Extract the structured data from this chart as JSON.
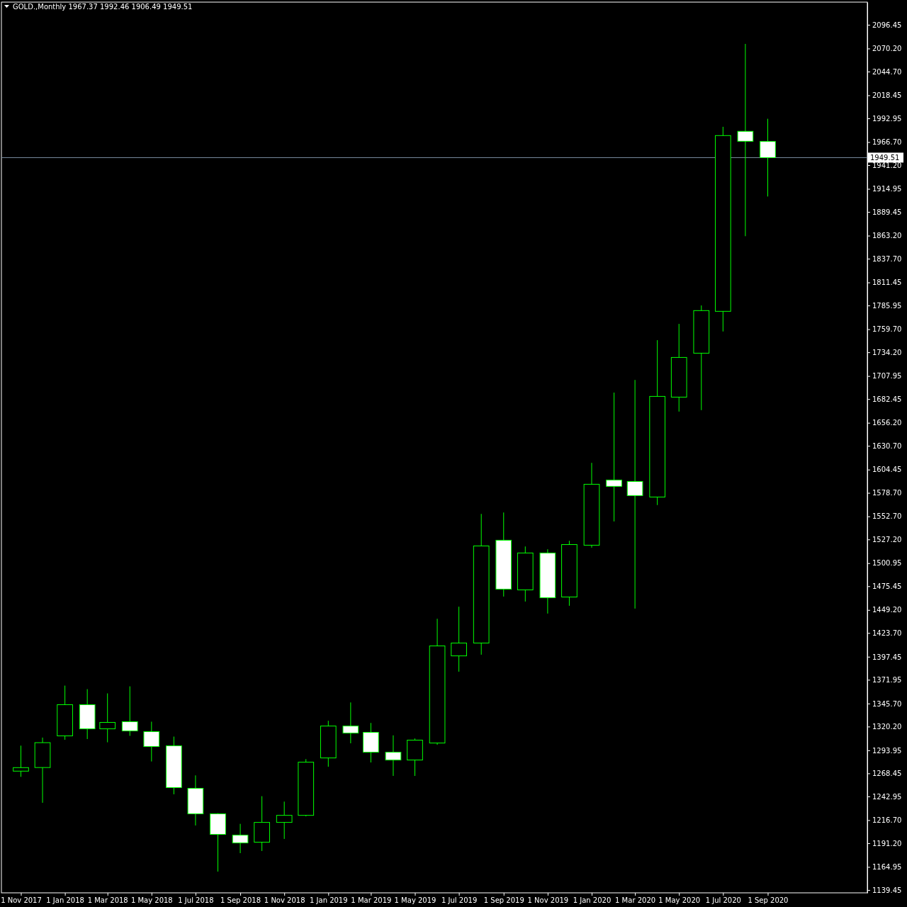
{
  "chart_data": {
    "type": "candlestick",
    "title": "GOLD.,Monthly  1967.37 1992.46 1906.49 1949.51",
    "color": "#00ff00",
    "x": [
      "2017-11",
      "2017-12",
      "2018-01",
      "2018-02",
      "2018-03",
      "2018-04",
      "2018-05",
      "2018-06",
      "2018-07",
      "2018-08",
      "2018-09",
      "2018-10",
      "2018-11",
      "2018-12",
      "2019-01",
      "2019-02",
      "2019-03",
      "2019-04",
      "2019-05",
      "2019-06",
      "2019-07",
      "2019-08",
      "2019-09",
      "2019-10",
      "2019-11",
      "2019-12",
      "2020-01",
      "2020-02",
      "2020-03",
      "2020-04",
      "2020-05",
      "2020-06",
      "2020-07",
      "2020-08",
      "2020-09"
    ],
    "xlim": [
      "2017-10-05",
      "2021-01-17"
    ],
    "xticks": [
      {
        "value": "2017-11",
        "label": "1 Nov 2017"
      },
      {
        "value": "2018-01",
        "label": "1 Jan 2018"
      },
      {
        "value": "2018-03",
        "label": "1 Mar 2018"
      },
      {
        "value": "2018-05",
        "label": "1 May 2018"
      },
      {
        "value": "2018-07",
        "label": "1 Jul 2018"
      },
      {
        "value": "2018-09",
        "label": "1 Sep 2018"
      },
      {
        "value": "2018-11",
        "label": "1 Nov 2018"
      },
      {
        "value": "2019-01",
        "label": "1 Jan 2019"
      },
      {
        "value": "2019-03",
        "label": "1 Mar 2019"
      },
      {
        "value": "2019-05",
        "label": "1 May 2019"
      },
      {
        "value": "2019-07",
        "label": "1 Jul 2019"
      },
      {
        "value": "2019-09",
        "label": "1 Sep 2019"
      },
      {
        "value": "2019-11",
        "label": "1 Nov 2019"
      },
      {
        "value": "2020-01",
        "label": "1 Jan 2020"
      },
      {
        "value": "2020-03",
        "label": "1 Mar 2020"
      },
      {
        "value": "2020-05",
        "label": "1 May 2020"
      },
      {
        "value": "2020-07",
        "label": "1 Jul 2020"
      },
      {
        "value": "2020-09",
        "label": "1 Sep 2020"
      }
    ],
    "ohlc": [
      [
        1270.9,
        1299.1,
        1264.6,
        1274.8
      ],
      [
        1274.9,
        1308.0,
        1235.9,
        1302.4
      ],
      [
        1309.9,
        1365.5,
        1305.6,
        1344.4
      ],
      [
        1344.4,
        1361.6,
        1306.4,
        1317.7
      ],
      [
        1317.7,
        1356.9,
        1302.8,
        1324.8
      ],
      [
        1325.6,
        1364.7,
        1309.9,
        1315.4
      ],
      [
        1314.6,
        1325.6,
        1281.6,
        1298.1
      ],
      [
        1298.9,
        1309.1,
        1245.3,
        1252.7
      ],
      [
        1251.9,
        1266.2,
        1210.8,
        1223.7
      ],
      [
        1223.7,
        1224.4,
        1159.8,
        1200.9
      ],
      [
        1200.1,
        1212.6,
        1180.2,
        1191.5
      ],
      [
        1192.3,
        1243.2,
        1182.6,
        1214.2
      ],
      [
        1214.2,
        1237.2,
        1195.9,
        1222.0
      ],
      [
        1222.0,
        1284.2,
        1220.9,
        1280.8
      ],
      [
        1285.5,
        1326.6,
        1275.8,
        1320.8
      ],
      [
        1320.8,
        1346.9,
        1301.7,
        1313.0
      ],
      [
        1313.8,
        1324.2,
        1280.5,
        1291.8
      ],
      [
        1291.8,
        1310.5,
        1265.6,
        1283.2
      ],
      [
        1283.2,
        1307.0,
        1265.6,
        1305.2
      ],
      [
        1302.0,
        1439.4,
        1300.0,
        1409.4
      ],
      [
        1398.4,
        1452.8,
        1380.9,
        1412.6
      ],
      [
        1412.6,
        1555.4,
        1399.7,
        1520.0
      ],
      [
        1526.3,
        1557.0,
        1464.0,
        1472.2
      ],
      [
        1471.4,
        1519.4,
        1458.5,
        1512.2
      ],
      [
        1512.2,
        1516.3,
        1445.2,
        1462.7
      ],
      [
        1463.5,
        1525.7,
        1453.8,
        1521.5
      ],
      [
        1520.8,
        1611.9,
        1518.1,
        1588.2
      ],
      [
        1592.9,
        1689.6,
        1547.1,
        1585.9
      ],
      [
        1591.3,
        1703.6,
        1450.7,
        1575.7
      ],
      [
        1574.1,
        1747.6,
        1565.2,
        1685.4
      ],
      [
        1684.6,
        1765.6,
        1668.6,
        1728.5
      ],
      [
        1733.2,
        1786.0,
        1670.2,
        1780.3
      ],
      [
        1779.5,
        1983.6,
        1757.2,
        1973.9
      ],
      [
        1978.6,
        2075.3,
        1862.6,
        1967.6
      ],
      [
        1967.37,
        1992.46,
        1906.49,
        1949.51
      ]
    ],
    "ylim": [
      1136.3,
      2121.5
    ],
    "yticks": [
      {
        "value": 1139.45,
        "label": "1139.45"
      },
      {
        "value": 1164.95,
        "label": "1164.95"
      },
      {
        "value": 1191.2,
        "label": "1191.20"
      },
      {
        "value": 1216.7,
        "label": "1216.70"
      },
      {
        "value": 1242.95,
        "label": "1242.95"
      },
      {
        "value": 1268.45,
        "label": "1268.45"
      },
      {
        "value": 1293.95,
        "label": "1293.95"
      },
      {
        "value": 1320.2,
        "label": "1320.20"
      },
      {
        "value": 1345.7,
        "label": "1345.70"
      },
      {
        "value": 1371.95,
        "label": "1371.95"
      },
      {
        "value": 1397.45,
        "label": "1397.45"
      },
      {
        "value": 1423.7,
        "label": "1423.70"
      },
      {
        "value": 1449.2,
        "label": "1449.20"
      },
      {
        "value": 1475.45,
        "label": "1475.45"
      },
      {
        "value": 1500.95,
        "label": "1500.95"
      },
      {
        "value": 1527.2,
        "label": "1527.20"
      },
      {
        "value": 1552.7,
        "label": "1552.70"
      },
      {
        "value": 1578.7,
        "label": "1578.70"
      },
      {
        "value": 1604.45,
        "label": "1604.45"
      },
      {
        "value": 1630.7,
        "label": "1630.70"
      },
      {
        "value": 1656.2,
        "label": "1656.20"
      },
      {
        "value": 1682.45,
        "label": "1682.45"
      },
      {
        "value": 1707.95,
        "label": "1707.95"
      },
      {
        "value": 1734.2,
        "label": "1734.20"
      },
      {
        "value": 1759.7,
        "label": "1759.70"
      },
      {
        "value": 1785.95,
        "label": "1785.95"
      },
      {
        "value": 1811.45,
        "label": "1811.45"
      },
      {
        "value": 1837.7,
        "label": "1837.70"
      },
      {
        "value": 1863.2,
        "label": "1863.20"
      },
      {
        "value": 1889.45,
        "label": "1889.45"
      },
      {
        "value": 1914.95,
        "label": "1914.95"
      },
      {
        "value": 1941.2,
        "label": "1941.20"
      },
      {
        "value": 1966.7,
        "label": "1966.70"
      },
      {
        "value": 1992.95,
        "label": "1992.95"
      },
      {
        "value": 2018.45,
        "label": "2018.45"
      },
      {
        "value": 2044.7,
        "label": "2044.70"
      },
      {
        "value": 2070.2,
        "label": "2070.20"
      },
      {
        "value": 2096.45,
        "label": "2096.45"
      }
    ],
    "ref_lines": [
      {
        "axis": "y",
        "value": 1949.51,
        "label": "1949.51",
        "color": "#7b8ea0"
      }
    ]
  }
}
